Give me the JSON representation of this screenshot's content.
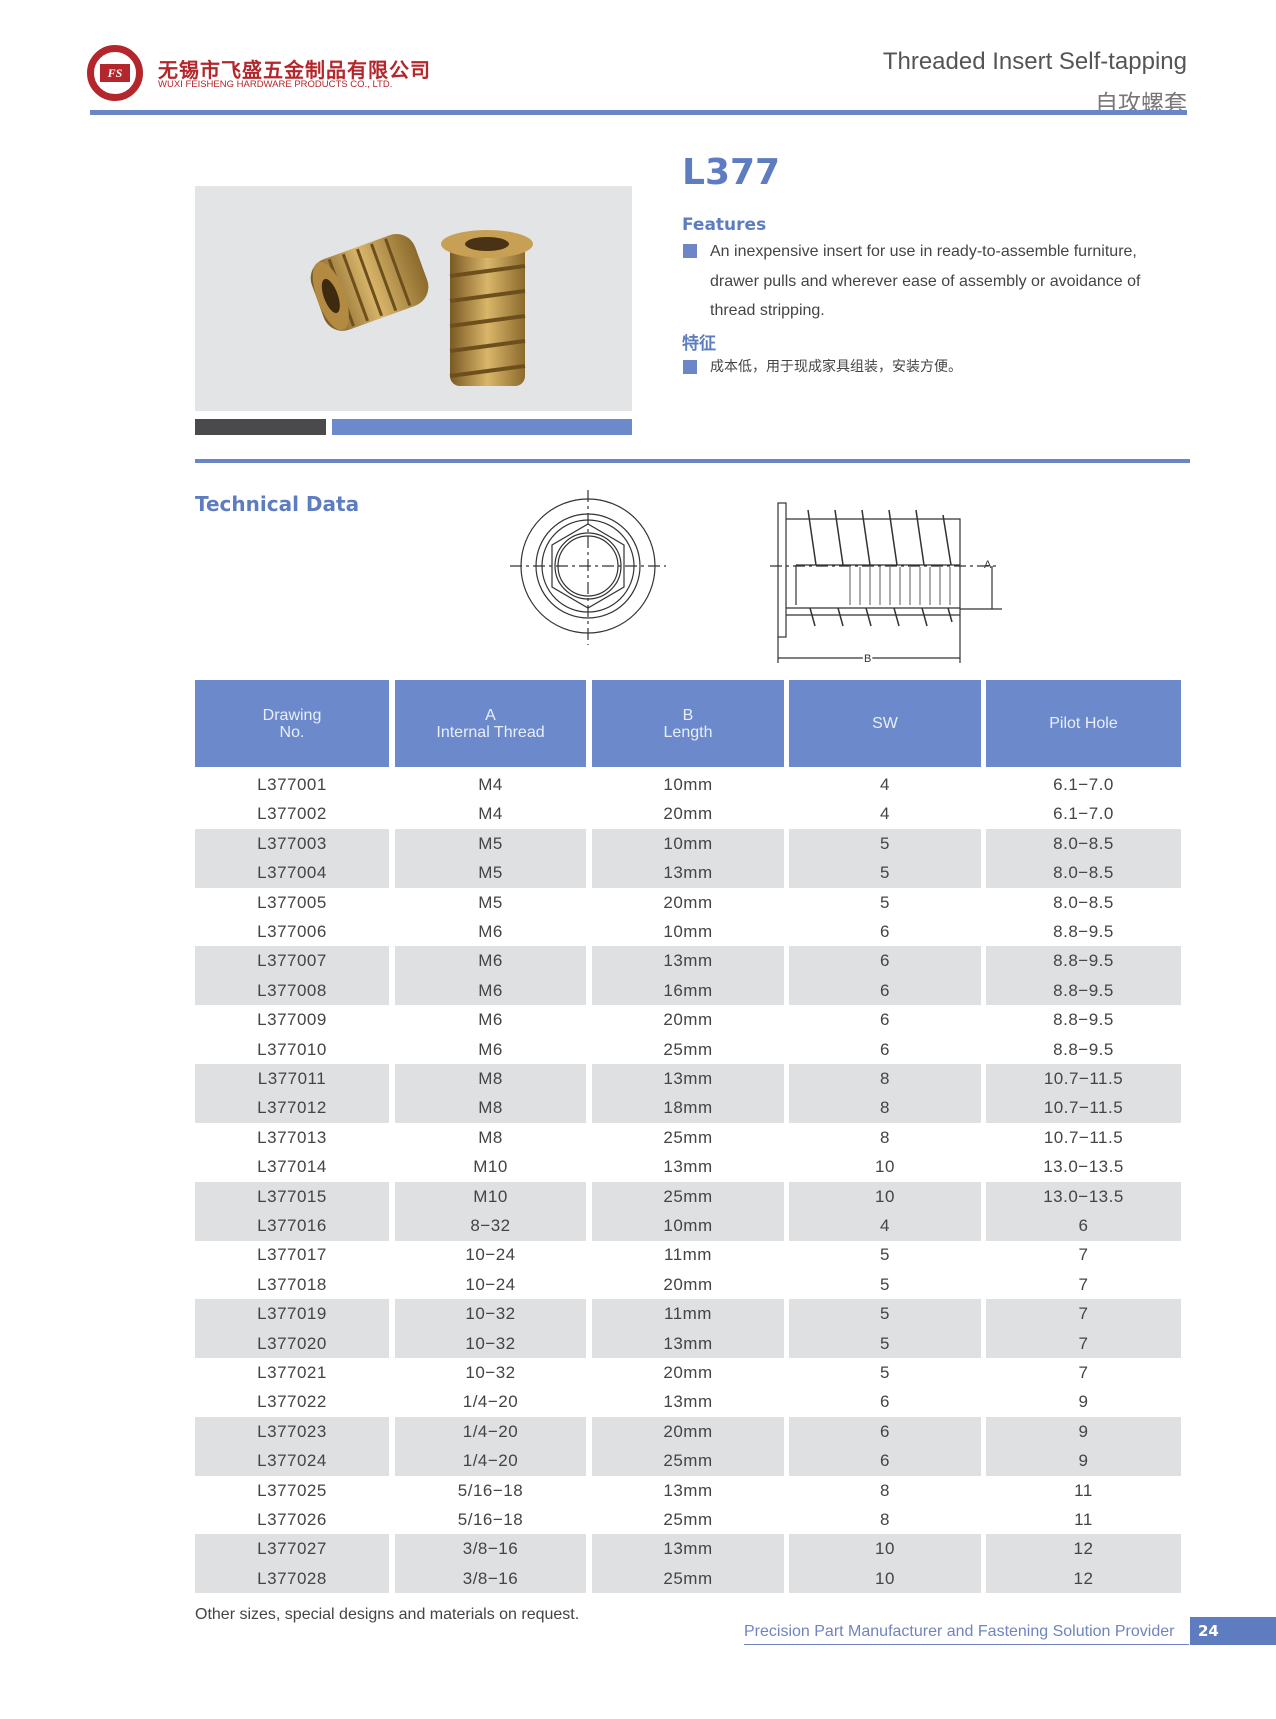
{
  "header": {
    "company_cn": "无锡市飞盛五金制品有限公司",
    "company_en": "WUXI FEISHENG HARDWARE PRODUCTS CO., LTD.",
    "logo_text": "FS",
    "title_en": "Threaded Insert Self-tapping",
    "title_cn": "自攻螺套"
  },
  "product": {
    "model": "L377",
    "features_label": "Features",
    "features_text": "An inexpensive insert for use in ready-to-assemble furniture, drawer pulls and wherever ease of assembly or avoidance of thread stripping.",
    "features_cn_label": "特征",
    "features_cn_text": "成本低，用于现成家具组装，安装方便。"
  },
  "technical": {
    "label": "Technical Data",
    "dim_a": "A",
    "dim_b": "B"
  },
  "table": {
    "headers": [
      [
        "Drawing",
        "No."
      ],
      [
        "A",
        "Internal Thread"
      ],
      [
        "B",
        "Length"
      ],
      [
        "SW"
      ],
      [
        "Pilot Hole"
      ]
    ],
    "rows": [
      [
        "L377001",
        "M4",
        "10mm",
        "4",
        "6.1−7.0"
      ],
      [
        "L377002",
        "M4",
        "20mm",
        "4",
        "6.1−7.0"
      ],
      [
        "L377003",
        "M5",
        "10mm",
        "5",
        "8.0−8.5"
      ],
      [
        "L377004",
        "M5",
        "13mm",
        "5",
        "8.0−8.5"
      ],
      [
        "L377005",
        "M5",
        "20mm",
        "5",
        "8.0−8.5"
      ],
      [
        "L377006",
        "M6",
        "10mm",
        "6",
        "8.8−9.5"
      ],
      [
        "L377007",
        "M6",
        "13mm",
        "6",
        "8.8−9.5"
      ],
      [
        "L377008",
        "M6",
        "16mm",
        "6",
        "8.8−9.5"
      ],
      [
        "L377009",
        "M6",
        "20mm",
        "6",
        "8.8−9.5"
      ],
      [
        "L377010",
        "M6",
        "25mm",
        "6",
        "8.8−9.5"
      ],
      [
        "L377011",
        "M8",
        "13mm",
        "8",
        "10.7−11.5"
      ],
      [
        "L377012",
        "M8",
        "18mm",
        "8",
        "10.7−11.5"
      ],
      [
        "L377013",
        "M8",
        "25mm",
        "8",
        "10.7−11.5"
      ],
      [
        "L377014",
        "M10",
        "13mm",
        "10",
        "13.0−13.5"
      ],
      [
        "L377015",
        "M10",
        "25mm",
        "10",
        "13.0−13.5"
      ],
      [
        "L377016",
        "8−32",
        "10mm",
        "4",
        "6"
      ],
      [
        "L377017",
        "10−24",
        "11mm",
        "5",
        "7"
      ],
      [
        "L377018",
        "10−24",
        "20mm",
        "5",
        "7"
      ],
      [
        "L377019",
        "10−32",
        "11mm",
        "5",
        "7"
      ],
      [
        "L377020",
        "10−32",
        "13mm",
        "5",
        "7"
      ],
      [
        "L377021",
        "10−32",
        "20mm",
        "5",
        "7"
      ],
      [
        "L377022",
        "1/4−20",
        "13mm",
        "6",
        "9"
      ],
      [
        "L377023",
        "1/4−20",
        "20mm",
        "6",
        "9"
      ],
      [
        "L377024",
        "1/4−20",
        "25mm",
        "6",
        "9"
      ],
      [
        "L377025",
        "5/16−18",
        "13mm",
        "8",
        "11"
      ],
      [
        "L377026",
        "5/16−18",
        "25mm",
        "8",
        "11"
      ],
      [
        "L377027",
        "3/8−16",
        "13mm",
        "10",
        "12"
      ],
      [
        "L377028",
        "3/8−16",
        "25mm",
        "10",
        "12"
      ]
    ]
  },
  "footer": {
    "note": "Other sizes, special designs and materials on request.",
    "slogan": "Precision Part Manufacturer and Fastening Solution Provider",
    "page": "24"
  },
  "colors": {
    "accent": "#6c8acb",
    "brand_red": "#b3262b",
    "row_shade": "#dfe0e2"
  }
}
